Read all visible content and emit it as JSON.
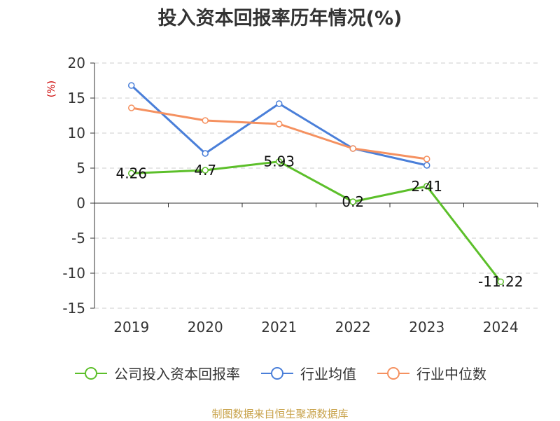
{
  "title": "投入资本回报率历年情况(%)",
  "footer": "制图数据来自恒生聚源数据库",
  "colors": {
    "company": "#5cbf2a",
    "industry_avg": "#4a7fd9",
    "industry_median": "#f59160",
    "ylabel": "#cc0000",
    "grid": "#cccccc",
    "axis": "#333333"
  },
  "chart_data": {
    "type": "line",
    "title": "投入资本回报率历年情况(%)",
    "xlabel": "",
    "ylabel": "(%)",
    "ylim": [
      -15,
      20
    ],
    "yticks": [
      20,
      15,
      10,
      5,
      0,
      -5,
      -10,
      -15
    ],
    "categories": [
      "2019",
      "2020",
      "2021",
      "2022",
      "2023",
      "2024"
    ],
    "grid": true,
    "legend_position": "bottom",
    "series": [
      {
        "name": "公司投入资本回报率",
        "color": "#5cbf2a",
        "values": [
          4.26,
          4.7,
          5.93,
          0.2,
          2.41,
          -11.22
        ],
        "labels": [
          "4.26",
          "4.7",
          "5.93",
          "0.2",
          "2.41",
          "-11.22"
        ]
      },
      {
        "name": "行业均值",
        "color": "#4a7fd9",
        "values": [
          16.8,
          7.1,
          14.2,
          7.8,
          5.4,
          null
        ]
      },
      {
        "name": "行业中位数",
        "color": "#f59160",
        "values": [
          13.6,
          11.8,
          11.3,
          7.8,
          6.3,
          null
        ]
      }
    ]
  }
}
